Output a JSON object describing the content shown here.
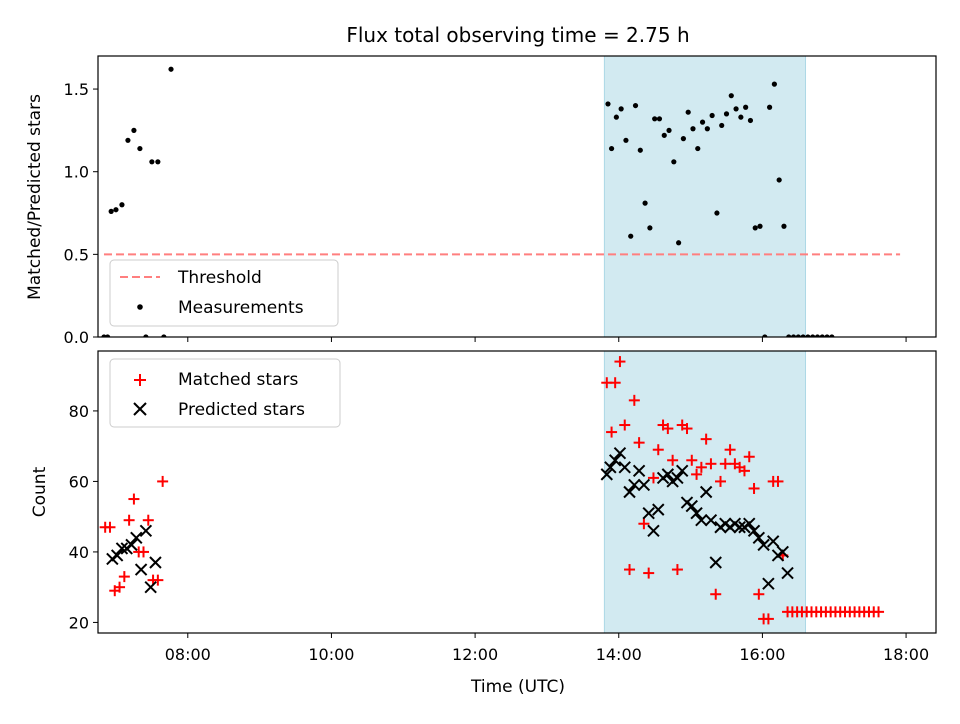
{
  "colors": {
    "threshold": "#ff7f7f",
    "measurements": "#000000",
    "matched": "#ff0000",
    "predicted": "#000000",
    "shade": "#add8e6"
  },
  "chart_data": [
    {
      "type": "scatter",
      "title": "Flux total observing time = 2.75 h",
      "xlabel": "",
      "ylabel": "Matched/Predicted stars",
      "xlim": [
        "06:45",
        "18:25"
      ],
      "ylim": [
        0,
        1.7
      ],
      "yticks": [
        0.0,
        0.5,
        1.0,
        1.5
      ],
      "ytick_labels": [
        "0.0",
        "0.5",
        "1.0",
        "1.5"
      ],
      "shaded_interval": [
        "13:48",
        "16:36"
      ],
      "legend_position": "lower-left",
      "threshold": {
        "name": "Threshold",
        "value": 0.5,
        "x": [
          "06:50",
          "17:55"
        ]
      },
      "series": [
        {
          "name": "Measurements",
          "points": [
            [
              "06:50",
              0
            ],
            [
              "06:53",
              0
            ],
            [
              "06:56",
              0.76
            ],
            [
              "07:00",
              0.77
            ],
            [
              "07:05",
              0.8
            ],
            [
              "07:10",
              1.19
            ],
            [
              "07:15",
              1.25
            ],
            [
              "07:20",
              1.14
            ],
            [
              "07:25",
              0
            ],
            [
              "07:30",
              1.06
            ],
            [
              "07:35",
              1.06
            ],
            [
              "07:40",
              0
            ],
            [
              "07:46",
              1.62
            ],
            [
              "13:51",
              1.41
            ],
            [
              "13:54",
              1.14
            ],
            [
              "13:58",
              1.33
            ],
            [
              "14:02",
              1.38
            ],
            [
              "14:06",
              1.19
            ],
            [
              "14:10",
              0.61
            ],
            [
              "14:14",
              1.4
            ],
            [
              "14:18",
              1.13
            ],
            [
              "14:22",
              0.81
            ],
            [
              "14:26",
              0.66
            ],
            [
              "14:30",
              1.32
            ],
            [
              "14:34",
              1.32
            ],
            [
              "14:38",
              1.22
            ],
            [
              "14:42",
              1.25
            ],
            [
              "14:46",
              1.06
            ],
            [
              "14:50",
              0.57
            ],
            [
              "14:54",
              1.2
            ],
            [
              "14:58",
              1.36
            ],
            [
              "15:02",
              1.26
            ],
            [
              "15:06",
              1.14
            ],
            [
              "15:10",
              1.3
            ],
            [
              "15:14",
              1.26
            ],
            [
              "15:18",
              1.34
            ],
            [
              "15:22",
              0.75
            ],
            [
              "15:26",
              1.28
            ],
            [
              "15:30",
              1.35
            ],
            [
              "15:34",
              1.46
            ],
            [
              "15:38",
              1.38
            ],
            [
              "15:42",
              1.33
            ],
            [
              "15:46",
              1.39
            ],
            [
              "15:50",
              1.31
            ],
            [
              "15:54",
              0.66
            ],
            [
              "15:58",
              0.67
            ],
            [
              "16:02",
              0
            ],
            [
              "16:06",
              1.39
            ],
            [
              "16:10",
              1.53
            ],
            [
              "16:14",
              0.95
            ],
            [
              "16:18",
              0.67
            ],
            [
              "16:22",
              0
            ],
            [
              "16:26",
              0
            ],
            [
              "16:30",
              0
            ],
            [
              "16:34",
              0
            ],
            [
              "16:38",
              0
            ],
            [
              "16:42",
              0
            ],
            [
              "16:46",
              0
            ],
            [
              "16:50",
              0
            ],
            [
              "16:54",
              0
            ],
            [
              "16:58",
              0
            ]
          ]
        }
      ]
    },
    {
      "type": "scatter",
      "title": "",
      "xlabel": "Time (UTC)",
      "ylabel": "Count",
      "xlim": [
        "06:45",
        "18:25"
      ],
      "ylim": [
        17,
        97
      ],
      "yticks": [
        20,
        40,
        60,
        80
      ],
      "ytick_labels": [
        "20",
        "40",
        "60",
        "80"
      ],
      "xticks": [
        "08:00",
        "10:00",
        "12:00",
        "14:00",
        "16:00",
        "18:00"
      ],
      "shaded_interval": [
        "13:48",
        "16:36"
      ],
      "legend_position": "upper-left",
      "series": [
        {
          "name": "Matched stars",
          "marker": "plus",
          "points": [
            [
              "06:51",
              47
            ],
            [
              "06:55",
              47
            ],
            [
              "06:59",
              29
            ],
            [
              "07:03",
              30
            ],
            [
              "07:07",
              33
            ],
            [
              "07:11",
              49
            ],
            [
              "07:15",
              55
            ],
            [
              "07:19",
              40
            ],
            [
              "07:23",
              40
            ],
            [
              "07:27",
              49
            ],
            [
              "07:31",
              32
            ],
            [
              "07:35",
              32
            ],
            [
              "07:39",
              60
            ],
            [
              "13:50",
              88
            ],
            [
              "13:54",
              74
            ],
            [
              "13:57",
              88
            ],
            [
              "14:01",
              94
            ],
            [
              "14:05",
              76
            ],
            [
              "14:09",
              35
            ],
            [
              "14:13",
              83
            ],
            [
              "14:17",
              71
            ],
            [
              "14:21",
              48
            ],
            [
              "14:25",
              34
            ],
            [
              "14:29",
              61
            ],
            [
              "14:33",
              69
            ],
            [
              "14:37",
              76
            ],
            [
              "14:41",
              75
            ],
            [
              "14:45",
              66
            ],
            [
              "14:49",
              35
            ],
            [
              "14:53",
              76
            ],
            [
              "14:57",
              75
            ],
            [
              "15:01",
              66
            ],
            [
              "15:05",
              62
            ],
            [
              "15:09",
              64
            ],
            [
              "15:13",
              72
            ],
            [
              "15:17",
              65
            ],
            [
              "15:21",
              28
            ],
            [
              "15:25",
              60
            ],
            [
              "15:29",
              65
            ],
            [
              "15:33",
              69
            ],
            [
              "15:37",
              65
            ],
            [
              "15:41",
              64
            ],
            [
              "15:45",
              63
            ],
            [
              "15:49",
              67
            ],
            [
              "15:53",
              58
            ],
            [
              "15:57",
              28
            ],
            [
              "16:01",
              21
            ],
            [
              "16:05",
              21
            ],
            [
              "16:09",
              60
            ],
            [
              "16:13",
              60
            ],
            [
              "16:17",
              39
            ],
            [
              "16:21",
              23
            ],
            [
              "16:25",
              23
            ],
            [
              "16:29",
              23
            ],
            [
              "16:33",
              23
            ],
            [
              "16:37",
              23
            ],
            [
              "16:41",
              23
            ],
            [
              "16:45",
              23
            ],
            [
              "16:49",
              23
            ],
            [
              "16:53",
              23
            ],
            [
              "16:57",
              23
            ],
            [
              "17:01",
              23
            ],
            [
              "17:05",
              23
            ],
            [
              "17:09",
              23
            ],
            [
              "17:13",
              23
            ],
            [
              "17:17",
              23
            ],
            [
              "17:21",
              23
            ],
            [
              "17:25",
              23
            ],
            [
              "17:29",
              23
            ],
            [
              "17:33",
              23
            ],
            [
              "17:37",
              23
            ]
          ]
        },
        {
          "name": "Predicted stars",
          "marker": "x",
          "points": [
            [
              "06:57",
              38
            ],
            [
              "07:01",
              39
            ],
            [
              "07:05",
              41
            ],
            [
              "07:09",
              41
            ],
            [
              "07:13",
              42
            ],
            [
              "07:17",
              44
            ],
            [
              "07:21",
              35
            ],
            [
              "07:25",
              46
            ],
            [
              "07:29",
              30
            ],
            [
              "07:33",
              37
            ],
            [
              "13:50",
              62
            ],
            [
              "13:53",
              64
            ],
            [
              "13:57",
              66
            ],
            [
              "14:01",
              68
            ],
            [
              "14:05",
              64
            ],
            [
              "14:09",
              57
            ],
            [
              "14:13",
              59
            ],
            [
              "14:17",
              63
            ],
            [
              "14:21",
              59
            ],
            [
              "14:25",
              51
            ],
            [
              "14:29",
              46
            ],
            [
              "14:33",
              52
            ],
            [
              "14:37",
              61
            ],
            [
              "14:41",
              62
            ],
            [
              "14:45",
              60
            ],
            [
              "14:49",
              61
            ],
            [
              "14:53",
              63
            ],
            [
              "14:57",
              54
            ],
            [
              "15:01",
              53
            ],
            [
              "15:05",
              51
            ],
            [
              "15:09",
              49
            ],
            [
              "15:13",
              57
            ],
            [
              "15:17",
              49
            ],
            [
              "15:21",
              37
            ],
            [
              "15:25",
              47
            ],
            [
              "15:29",
              48
            ],
            [
              "15:33",
              47
            ],
            [
              "15:37",
              48
            ],
            [
              "15:41",
              47
            ],
            [
              "15:45",
              47
            ],
            [
              "15:49",
              48
            ],
            [
              "15:53",
              46
            ],
            [
              "15:57",
              44
            ],
            [
              "16:01",
              42
            ],
            [
              "16:05",
              31
            ],
            [
              "16:09",
              43
            ],
            [
              "16:13",
              39
            ],
            [
              "16:17",
              40
            ],
            [
              "16:21",
              34
            ]
          ]
        }
      ]
    }
  ]
}
